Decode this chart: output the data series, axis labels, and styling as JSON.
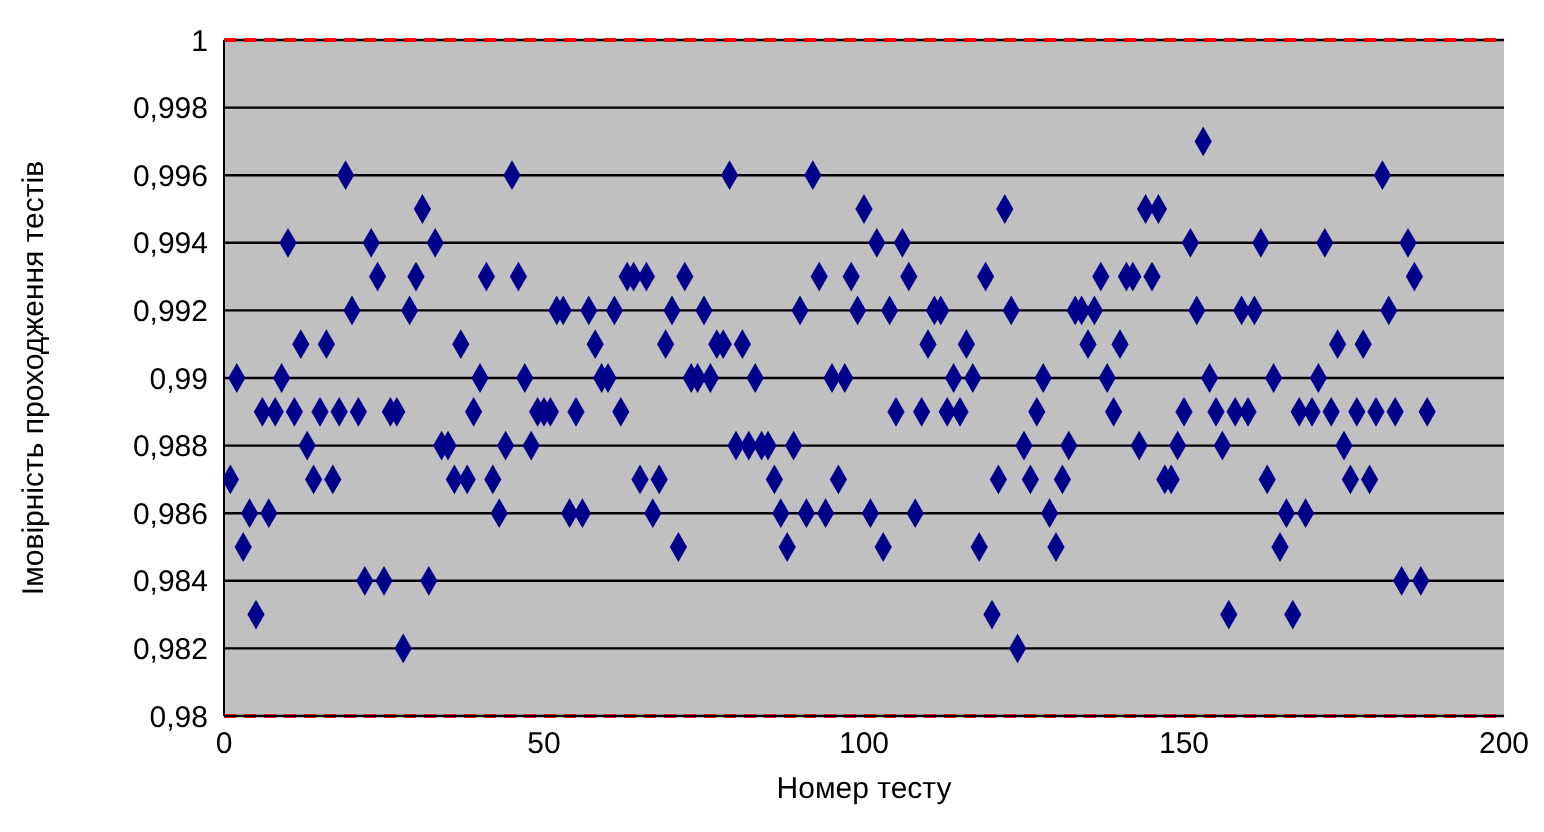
{
  "chart_data": {
    "type": "scatter",
    "xlabel": "Номер тесту",
    "ylabel": "Імовірність проходження тестів",
    "x": [
      1,
      2,
      3,
      4,
      5,
      6,
      7,
      8,
      9,
      10,
      11,
      12,
      13,
      14,
      15,
      16,
      17,
      18,
      19,
      20,
      21,
      22,
      23,
      24,
      25,
      26,
      27,
      28,
      29,
      30,
      31,
      32,
      33,
      34,
      35,
      36,
      37,
      38,
      39,
      40,
      41,
      42,
      43,
      44,
      45,
      46,
      47,
      48,
      49,
      50,
      51,
      52,
      53,
      54,
      55,
      56,
      57,
      58,
      59,
      60,
      61,
      62,
      63,
      64,
      65,
      66,
      67,
      68,
      69,
      70,
      71,
      72,
      73,
      74,
      75,
      76,
      77,
      78,
      79,
      80,
      81,
      82,
      83,
      84,
      85,
      86,
      87,
      88,
      89,
      90,
      91,
      92,
      93,
      94,
      95,
      96,
      97,
      98,
      99,
      100,
      101,
      102,
      103,
      104,
      105,
      106,
      107,
      108,
      109,
      110,
      111,
      112,
      113,
      114,
      115,
      116,
      117,
      118,
      119,
      120,
      121,
      122,
      123,
      124,
      125,
      126,
      127,
      128,
      129,
      130,
      131,
      132,
      133,
      134,
      135,
      136,
      137,
      138,
      139,
      140,
      141,
      142,
      143,
      144,
      145,
      146,
      147,
      148,
      149,
      150,
      151,
      152,
      153,
      154,
      155,
      156,
      157,
      158,
      159,
      160,
      161,
      162,
      163,
      164,
      165,
      166,
      167,
      168,
      169,
      170,
      171,
      172,
      173,
      174,
      175,
      176,
      177,
      178,
      179,
      180,
      181,
      182,
      183,
      184,
      185,
      186,
      187,
      188
    ],
    "series": [
      {
        "color": "#00008b",
        "values": [
          0.987,
          0.99,
          0.985,
          0.986,
          0.983,
          0.989,
          0.986,
          0.989,
          0.99,
          0.994,
          0.989,
          0.991,
          0.988,
          0.987,
          0.989,
          0.991,
          0.987,
          0.989,
          0.996,
          0.992,
          0.989,
          0.984,
          0.994,
          0.993,
          0.984,
          0.989,
          0.989,
          0.982,
          0.992,
          0.993,
          0.995,
          0.984,
          0.994,
          0.988,
          0.988,
          0.987,
          0.991,
          0.987,
          0.989,
          0.99,
          0.993,
          0.987,
          0.986,
          0.988,
          0.996,
          0.993,
          0.99,
          0.988,
          0.989,
          0.989,
          0.989,
          0.992,
          0.992,
          0.986,
          0.989,
          0.986,
          0.992,
          0.991,
          0.99,
          0.99,
          0.992,
          0.989,
          0.993,
          0.993,
          0.987,
          0.993,
          0.986,
          0.987,
          0.991,
          0.992,
          0.985,
          0.993,
          0.99,
          0.99,
          0.992,
          0.99,
          0.991,
          0.991,
          0.996,
          0.988,
          0.991,
          0.988,
          0.99,
          0.988,
          0.988,
          0.987,
          0.986,
          0.985,
          0.988,
          0.992,
          0.986,
          0.996,
          0.993,
          0.986,
          0.99,
          0.987,
          0.99,
          0.993,
          0.992,
          0.995,
          0.986,
          0.994,
          0.985,
          0.992,
          0.989,
          0.994,
          0.993,
          0.986,
          0.989,
          0.991,
          0.992,
          0.992,
          0.989,
          0.99,
          0.989,
          0.991,
          0.99,
          0.985,
          0.993,
          0.983,
          0.987,
          0.995,
          0.992,
          0.982,
          0.988,
          0.987,
          0.989,
          0.99,
          0.986,
          0.985,
          0.987,
          0.988,
          0.992,
          0.992,
          0.991,
          0.992,
          0.993,
          0.99,
          0.989,
          0.991,
          0.993,
          0.993,
          0.988,
          0.995,
          0.993,
          0.995,
          0.987,
          0.987,
          0.988,
          0.989,
          0.994,
          0.992,
          0.997,
          0.99,
          0.989,
          0.988,
          0.983,
          0.989,
          0.992,
          0.989,
          0.992,
          0.994,
          0.987,
          0.99,
          0.985,
          0.986,
          0.983,
          0.989,
          0.986,
          0.989,
          0.99,
          0.994,
          0.989,
          0.991,
          0.988,
          0.987,
          0.989,
          0.991,
          0.987,
          0.989,
          0.996,
          0.992,
          0.989,
          0.984,
          0.994,
          0.993,
          0.984,
          0.989
        ]
      }
    ],
    "xlim": [
      0,
      200
    ],
    "xticks": [
      0,
      50,
      100,
      150,
      200
    ],
    "ylim": [
      0.98,
      1
    ],
    "yticks": [
      {
        "value": 0.98,
        "label": "0,98"
      },
      {
        "value": 0.982,
        "label": "0,982"
      },
      {
        "value": 0.984,
        "label": "0,984"
      },
      {
        "value": 0.986,
        "label": "0,986"
      },
      {
        "value": 0.988,
        "label": "0,988"
      },
      {
        "value": 0.99,
        "label": "0,99"
      },
      {
        "value": 0.992,
        "label": "0,992"
      },
      {
        "value": 0.994,
        "label": "0,994"
      },
      {
        "value": 0.996,
        "label": "0,996"
      },
      {
        "value": 0.998,
        "label": "0,998"
      },
      {
        "value": 1,
        "label": "1"
      }
    ],
    "ref_lines": [
      {
        "axis": "y",
        "value": 1,
        "color": "#ff0000",
        "line_style": "dashed"
      },
      {
        "axis": "y",
        "value": 0.98,
        "color": "#ff0000",
        "line_style": "dashed"
      }
    ],
    "grid": "y",
    "marker": "diamond"
  }
}
